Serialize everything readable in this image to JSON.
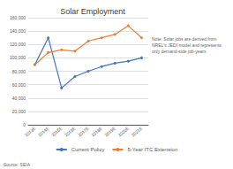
{
  "chart_data": {
    "type": "line",
    "title": "Solar Employment",
    "categories": [
      "2013E",
      "2014E",
      "2015E",
      "2016E",
      "2017E",
      "2018E",
      "2019E",
      "2020E",
      "2021E"
    ],
    "series": [
      {
        "name": "Current Policy",
        "color": "#4472C4",
        "values": [
          90000,
          130000,
          55000,
          72000,
          80000,
          87000,
          92000,
          95000,
          100000
        ]
      },
      {
        "name": "5-Year ITC Extension",
        "color": "#ED7D31",
        "values": [
          90000,
          108000,
          112000,
          110000,
          125000,
          130000,
          135000,
          148000,
          130000
        ]
      }
    ],
    "ylim": [
      0,
      160000
    ],
    "yticks": [
      0,
      {
        "value": 20000,
        "label": "20,000"
      },
      {
        "value": 40000,
        "label": "40,000"
      },
      {
        "value": 60000,
        "label": "60,000"
      },
      {
        "value": 80000,
        "label": "80,000"
      },
      {
        "value": 100000,
        "label": "100,000"
      },
      {
        "value": 120000,
        "label": "120,000"
      },
      {
        "value": 140000,
        "label": "140,000"
      },
      {
        "value": 160000,
        "label": "160,000"
      }
    ],
    "grid": true,
    "legend": "bottom",
    "marker": "circle",
    "annotations": [
      "Source: SEIA",
      "Note: Solar jobs are derived from\nNREL's JEDI model and represents\nonly demand-side job-years"
    ]
  }
}
